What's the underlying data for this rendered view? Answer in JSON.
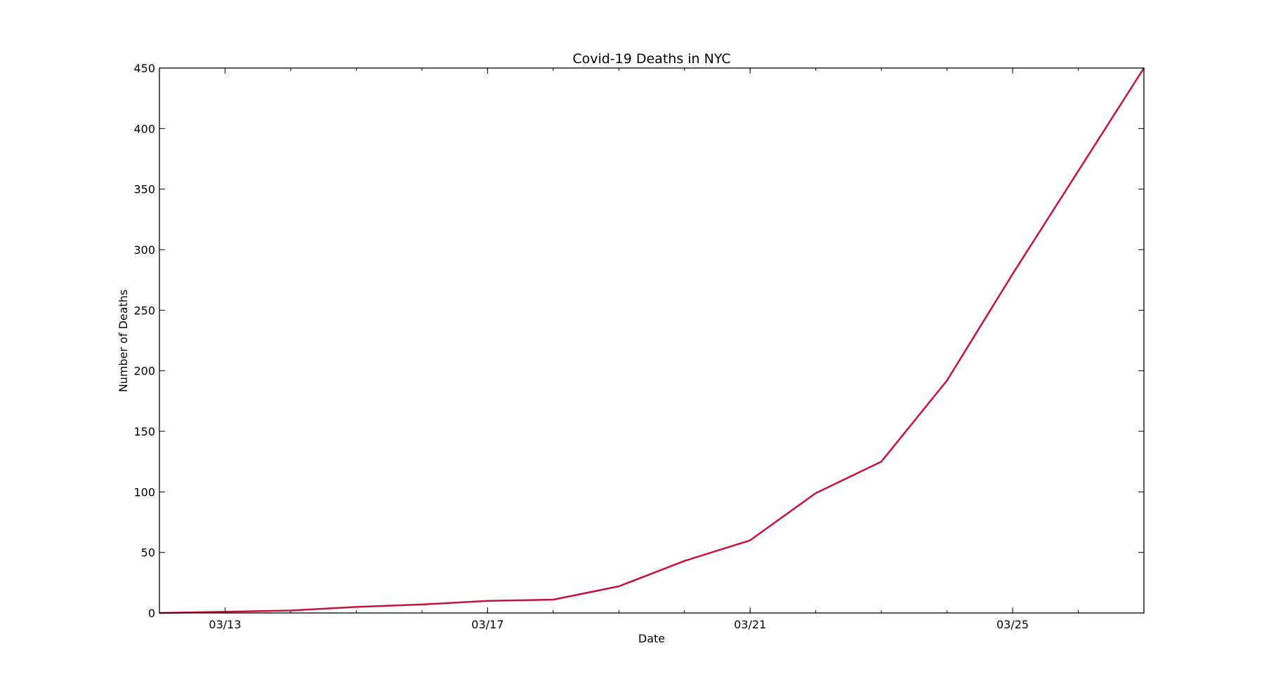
{
  "chart_data": {
    "type": "line",
    "title": "Covid-19 Deaths in NYC",
    "xlabel": "Date",
    "ylabel": "Number of Deaths",
    "x": [
      "03/12",
      "03/13",
      "03/14",
      "03/15",
      "03/16",
      "03/17",
      "03/18",
      "03/19",
      "03/20",
      "03/21",
      "03/22",
      "03/23",
      "03/24",
      "03/25",
      "03/26",
      "03/27"
    ],
    "series": [
      {
        "values": [
          0,
          1,
          2,
          5,
          7,
          10,
          11,
          22,
          43,
          60,
          99,
          125,
          192,
          280,
          365,
          450
        ],
        "color": "#c8103e"
      }
    ],
    "xticks": [
      "03/13",
      "03/17",
      "03/21",
      "03/25"
    ],
    "ylim": [
      0,
      450
    ],
    "yticks": [
      0,
      50,
      100,
      150,
      200,
      250,
      300,
      350,
      400,
      450
    ],
    "grid": false,
    "legend": "none"
  }
}
